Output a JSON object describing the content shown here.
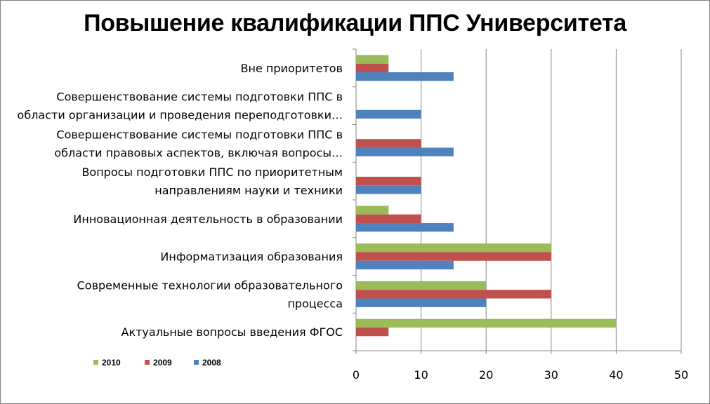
{
  "chart_data": {
    "type": "bar",
    "orientation": "horizontal",
    "title": "Повышение квалификации ППС Университета",
    "categories": [
      [
        "Вне приоритетов"
      ],
      [
        "Совершенствование системы подготовки ППС в",
        "области организации и проведения переподготовки…"
      ],
      [
        "Совершенствование системы подготовки ППС в",
        "области правовых аспектов, включая вопросы…"
      ],
      [
        "Вопросы подготовки ППС по приоритетным",
        "направлениям науки и техники"
      ],
      [
        "Инновационная деятельность в образовании"
      ],
      [
        "Информатизация образования"
      ],
      [
        "Современные технологии образовательного",
        "процесса"
      ],
      [
        "Актуальные вопросы введения ФГОС"
      ]
    ],
    "series": [
      {
        "name": "2010",
        "color": "#9bbb59",
        "values": [
          5,
          0,
          0,
          0,
          5,
          30,
          20,
          40
        ]
      },
      {
        "name": "2009",
        "color": "#c0504d",
        "values": [
          5,
          0,
          10,
          10,
          10,
          30,
          30,
          5
        ]
      },
      {
        "name": "2008",
        "color": "#4f81bd",
        "values": [
          15,
          10,
          15,
          10,
          15,
          15,
          20,
          0
        ]
      }
    ],
    "xlim": [
      0,
      50
    ],
    "xticks": [
      "0",
      "10",
      "20",
      "30",
      "40",
      "50"
    ],
    "grid": true,
    "legend_position": "bottom-left"
  }
}
